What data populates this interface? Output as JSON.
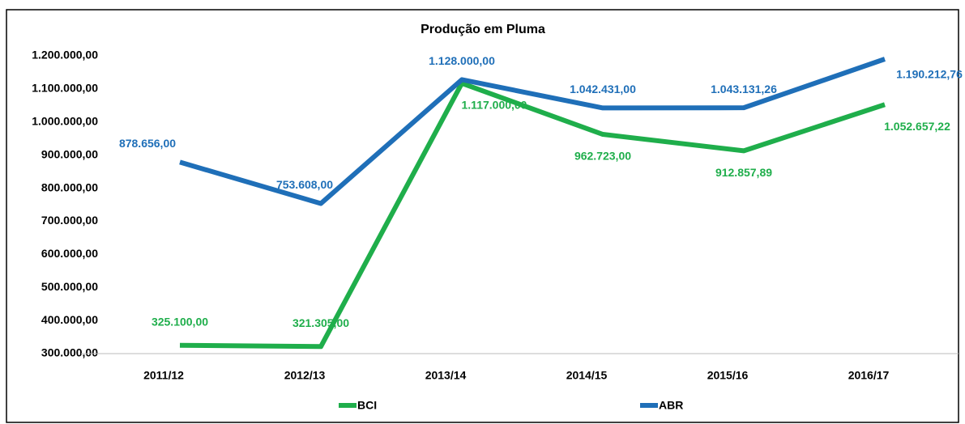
{
  "chart_data": {
    "type": "line",
    "title": "Produção em Pluma",
    "categories": [
      "2011/12",
      "2012/13",
      "2013/14",
      "2014/15",
      "2015/16",
      "2016/17"
    ],
    "series": [
      {
        "name": "BCI",
        "color": "#1fae4b",
        "values": [
          325100,
          321305,
          1117000,
          962723,
          912857.89,
          1052657.22
        ],
        "value_labels": [
          "325.100,00",
          "321.305,00",
          "1.117.000,00",
          "962.723,00",
          "912.857,89",
          "1.052.657,22"
        ]
      },
      {
        "name": "ABR",
        "color": "#1f6fb8",
        "values": [
          878656,
          753608,
          1128000,
          1042431,
          1043131.26,
          1190212.76
        ],
        "value_labels": [
          "878.656,00",
          "753.608,00",
          "1.128.000,00",
          "1.042.431,00",
          "1.043.131,26",
          "1.190.212,76"
        ]
      }
    ],
    "ylim": [
      300000,
      1200000
    ],
    "yticks": [
      {
        "value": 300000,
        "label": "300.000,00"
      },
      {
        "value": 400000,
        "label": "400.000,00"
      },
      {
        "value": 500000,
        "label": "500.000,00"
      },
      {
        "value": 600000,
        "label": "600.000,00"
      },
      {
        "value": 700000,
        "label": "700.000,00"
      },
      {
        "value": 800000,
        "label": "800.000,00"
      },
      {
        "value": 900000,
        "label": "900.000,00"
      },
      {
        "value": 1000000,
        "label": "1.000.000,00"
      },
      {
        "value": 1100000,
        "label": "1.100.000,00"
      },
      {
        "value": 1200000,
        "label": "1.200.000,00"
      }
    ],
    "grid": false,
    "legend": "bottom"
  }
}
